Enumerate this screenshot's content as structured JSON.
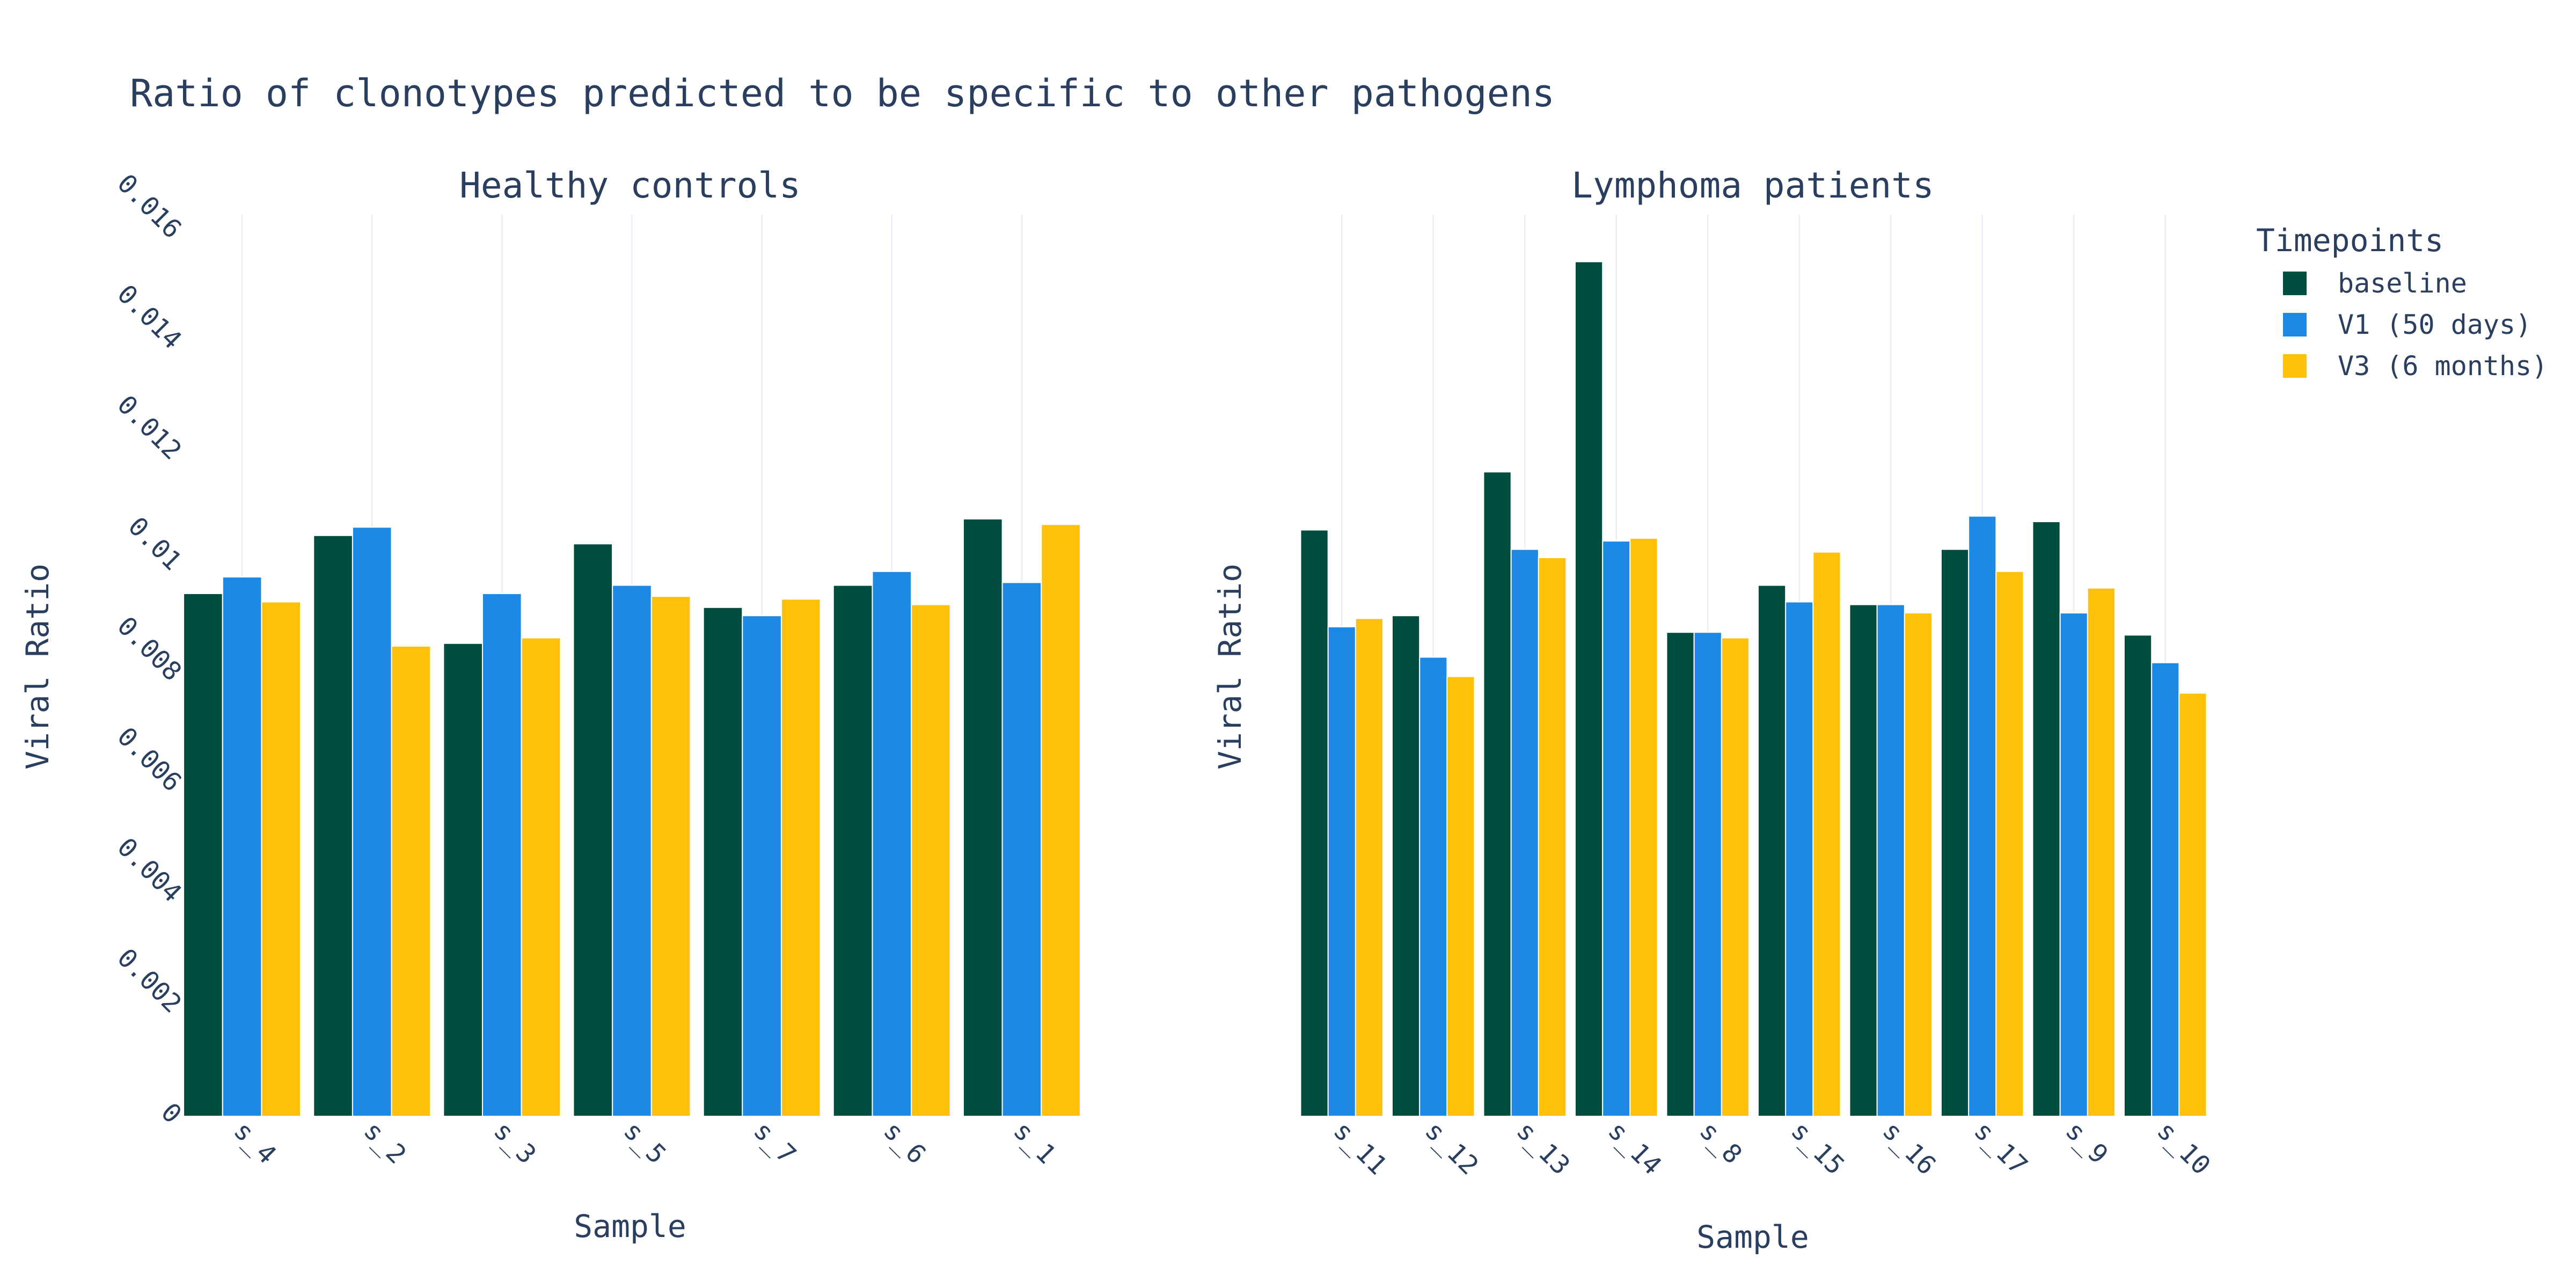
{
  "chart_data": [
    {
      "type": "bar",
      "title": "Healthy controls",
      "xlabel": "Sample",
      "ylabel": "Viral Ratio",
      "ylim": [
        0,
        0.0163
      ],
      "yticks": [
        "0",
        "0.002",
        "0.004",
        "0.006",
        "0.008",
        "0.01",
        "0.012",
        "0.014",
        "0.016"
      ],
      "categories": [
        "s_4",
        "s_2",
        "s_3",
        "s_5",
        "s_7",
        "s_6",
        "s_1"
      ],
      "series": [
        {
          "name": "baseline",
          "values": [
            0.00945,
            0.0105,
            0.00855,
            0.01035,
            0.0092,
            0.0096,
            0.0108
          ]
        },
        {
          "name": "V1 (50 days)",
          "values": [
            0.00975,
            0.01065,
            0.00945,
            0.0096,
            0.00905,
            0.00985,
            0.00965
          ]
        },
        {
          "name": "V3 (6 months)",
          "values": [
            0.0093,
            0.0085,
            0.00865,
            0.0094,
            0.00935,
            0.00925,
            0.0107
          ]
        }
      ]
    },
    {
      "type": "bar",
      "title": "Lymphoma patients",
      "xlabel": "Sample",
      "ylabel": "Viral Ratio",
      "ylim": [
        0,
        0.0163
      ],
      "categories": [
        "s_11",
        "s_12",
        "s_13",
        "s_14",
        "s_8",
        "s_15",
        "s_16",
        "s_17",
        "s_9",
        "s_10"
      ],
      "series": [
        {
          "name": "baseline",
          "values": [
            0.0106,
            0.00905,
            0.01165,
            0.01545,
            0.00875,
            0.0096,
            0.00925,
            0.01025,
            0.01075,
            0.0087
          ]
        },
        {
          "name": "V1 (50 days)",
          "values": [
            0.00885,
            0.0083,
            0.01025,
            0.0104,
            0.00875,
            0.0093,
            0.00925,
            0.01085,
            0.0091,
            0.0082
          ]
        },
        {
          "name": "V3 (6 months)",
          "values": [
            0.009,
            0.00795,
            0.0101,
            0.01045,
            0.00865,
            0.0102,
            0.0091,
            0.00985,
            0.00955,
            0.00765
          ]
        }
      ]
    }
  ],
  "figure": {
    "title": "Ratio of clonotypes predicted to be specific to other pathogens"
  },
  "legend": {
    "title": "Timepoints",
    "placement": "top-right",
    "items": [
      "baseline",
      "V1 (50 days)",
      "V3 (6 months)"
    ]
  },
  "colors": {
    "baseline": "#004d40",
    "V1 (50 days)": "#1e88e5",
    "V3 (6 months)": "#ffc107"
  }
}
